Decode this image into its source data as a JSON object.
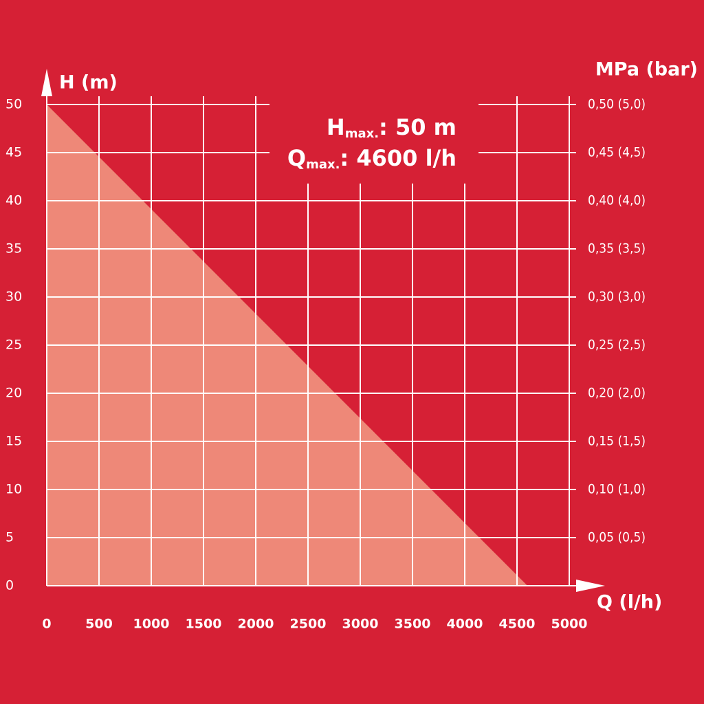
{
  "chart_data": {
    "type": "area",
    "x": [
      0,
      4600
    ],
    "series": [
      {
        "values": [
          50,
          0
        ],
        "color": "#ee8878"
      }
    ],
    "xlim": [
      0,
      5000
    ],
    "xticks": [
      0,
      500,
      1000,
      1500,
      2000,
      2500,
      3000,
      3500,
      4000,
      4500,
      5000
    ],
    "ylim": [
      0,
      50
    ],
    "yticks": [
      0,
      5,
      10,
      15,
      20,
      25,
      30,
      35,
      40,
      45,
      50
    ],
    "y2lim": [
      0,
      0.5
    ],
    "y2ticks": [
      {
        "value": 0.05,
        "label": "0,05 (0,5)"
      },
      {
        "value": 0.1,
        "label": "0,10 (1,0)"
      },
      {
        "value": 0.15,
        "label": "0,15 (1,5)"
      },
      {
        "value": 0.2,
        "label": "0,20 (2,0)"
      },
      {
        "value": 0.25,
        "label": "0,25 (2,5)"
      },
      {
        "value": 0.3,
        "label": "0,30 (3,0)"
      },
      {
        "value": 0.35,
        "label": "0,35 (3,5)"
      },
      {
        "value": 0.4,
        "label": "0,40 (4,0)"
      },
      {
        "value": 0.45,
        "label": "0,45 (4,5)"
      },
      {
        "value": 0.5,
        "label": "0,50 (5,0)"
      }
    ],
    "ylabel": "H (m)",
    "y2label": "MPa (bar)",
    "xlabel": "Q (l/h)",
    "grid": true,
    "background": "#d62035",
    "annotations": [
      {
        "main": "H",
        "sub": "max.",
        "text": ": 50 m"
      },
      {
        "main": "Q",
        "sub": "max.",
        "text": ": 4600 l/h"
      }
    ]
  }
}
